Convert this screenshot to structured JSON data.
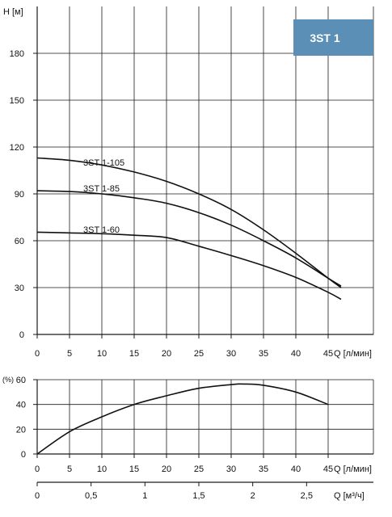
{
  "colors": {
    "badge": "#5b8fb5",
    "grid": "#1a1a1a",
    "curve": "#111111"
  },
  "badge": {
    "label": "3ST 1"
  },
  "chart_data": [
    {
      "type": "line",
      "title": "",
      "ylabel": "H [м]",
      "xlabel": "Q [л/мин]",
      "xlim": [
        0,
        52
      ],
      "ylim": [
        0,
        210
      ],
      "x_ticks": [
        0,
        5,
        10,
        15,
        20,
        25,
        30,
        35,
        40,
        45
      ],
      "y_ticks": [
        0,
        30,
        60,
        90,
        120,
        150,
        180
      ],
      "grid": true,
      "series": [
        {
          "name": "3ST 1-105",
          "x": [
            0,
            5,
            10,
            15,
            20,
            25,
            30,
            35,
            40,
            45,
            47
          ],
          "y": [
            113,
            111.5,
            108.5,
            104,
            98,
            90,
            80,
            67,
            52,
            36,
            30
          ]
        },
        {
          "name": "3ST 1-85",
          "x": [
            0,
            5,
            10,
            15,
            20,
            25,
            30,
            35,
            40,
            45,
            47
          ],
          "y": [
            92,
            91.5,
            90,
            87.5,
            84,
            78,
            70,
            60,
            49,
            36,
            31
          ]
        },
        {
          "name": "3ST 1-60",
          "x": [
            0,
            5,
            10,
            15,
            20,
            25,
            30,
            35,
            40,
            45,
            47
          ],
          "y": [
            65.5,
            65,
            64.5,
            63.5,
            62,
            56.5,
            50.5,
            44,
            36.5,
            27,
            22.5
          ]
        }
      ]
    },
    {
      "type": "line",
      "title": "",
      "ylabel": "(%)",
      "xlabel": "Q [л/мин]",
      "xlim": [
        0,
        52
      ],
      "ylim": [
        0,
        60
      ],
      "x_ticks": [
        0,
        5,
        10,
        15,
        20,
        25,
        30,
        35,
        40,
        45
      ],
      "y_ticks": [
        0,
        20,
        40,
        60
      ],
      "grid": true,
      "series": [
        {
          "name": "",
          "x": [
            0,
            5,
            10,
            15,
            20,
            25,
            30,
            32,
            35,
            40,
            45
          ],
          "y": [
            0,
            18,
            30,
            40,
            47,
            53,
            56,
            56.5,
            55.5,
            50,
            40
          ]
        }
      ]
    }
  ],
  "secondary_axis": {
    "label": "Q [м³/ч]",
    "ticks": [
      "0",
      "0,5",
      "1",
      "1,5",
      "2",
      "2,5"
    ],
    "tick_values": [
      0,
      0.5,
      1,
      1.5,
      2,
      2.5
    ],
    "per_unit_lpm": 16.6667
  }
}
